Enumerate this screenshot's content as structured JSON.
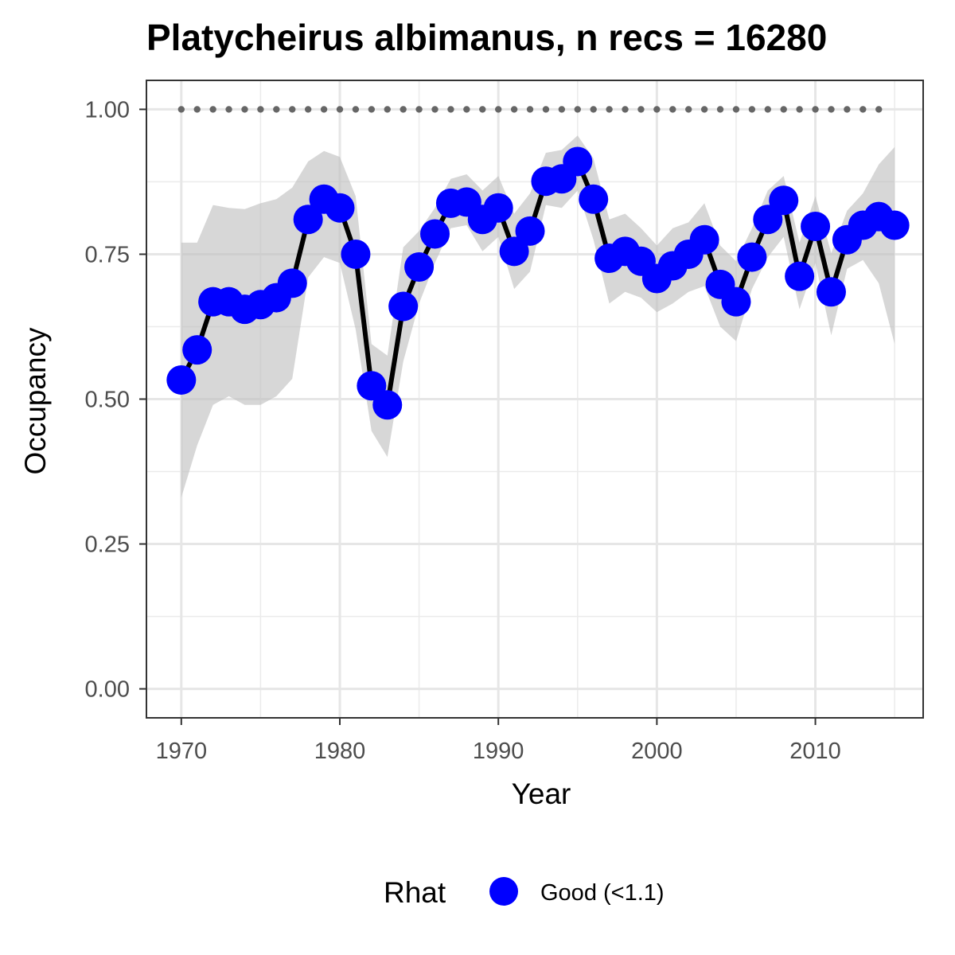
{
  "chart_data": {
    "type": "line",
    "title": "Platycheirus albimanus, n recs = 16280",
    "xlabel": "Year",
    "ylabel": "Occupancy",
    "xlim": [
      1967.8,
      2016.8
    ],
    "ylim": [
      -0.05,
      1.05
    ],
    "x_ticks": [
      1970,
      1980,
      1990,
      2000,
      2010
    ],
    "y_ticks": [
      0.0,
      0.25,
      0.5,
      0.75,
      1.0
    ],
    "x_tick_labels": [
      "1970",
      "1980",
      "1990",
      "2000",
      "2010"
    ],
    "y_tick_labels": [
      "0.00",
      "0.25",
      "0.50",
      "0.75",
      "1.00"
    ],
    "grid": true,
    "legend": {
      "title": "Rhat",
      "position": "bottom",
      "entries": [
        {
          "label": "Good (<1.1)",
          "color": "#0000ff"
        }
      ]
    },
    "series": [
      {
        "name": "Good (<1.1)",
        "color": "#0000ff",
        "line_color": "#000000",
        "x": [
          1970,
          1971,
          1972,
          1973,
          1974,
          1975,
          1976,
          1977,
          1978,
          1979,
          1980,
          1981,
          1982,
          1983,
          1984,
          1985,
          1986,
          1987,
          1988,
          1989,
          1990,
          1991,
          1992,
          1993,
          1994,
          1995,
          1996,
          1997,
          1998,
          1999,
          2000,
          2001,
          2002,
          2003,
          2004,
          2005,
          2006,
          2007,
          2008,
          2009,
          2010,
          2011,
          2012,
          2013,
          2014,
          2015
        ],
        "y": [
          0.533,
          0.585,
          0.668,
          0.668,
          0.655,
          0.663,
          0.675,
          0.7,
          0.81,
          0.845,
          0.83,
          0.75,
          0.523,
          0.49,
          0.66,
          0.728,
          0.785,
          0.838,
          0.84,
          0.81,
          0.83,
          0.755,
          0.79,
          0.876,
          0.88,
          0.91,
          0.845,
          0.743,
          0.755,
          0.738,
          0.708,
          0.73,
          0.75,
          0.775,
          0.698,
          0.668,
          0.745,
          0.81,
          0.843,
          0.712,
          0.798,
          0.685,
          0.775,
          0.8,
          0.815,
          0.8
        ],
        "lower": [
          0.33,
          0.42,
          0.49,
          0.505,
          0.49,
          0.49,
          0.505,
          0.535,
          0.71,
          0.745,
          0.735,
          0.62,
          0.445,
          0.4,
          0.565,
          0.665,
          0.735,
          0.795,
          0.8,
          0.755,
          0.78,
          0.69,
          0.72,
          0.835,
          0.83,
          0.86,
          0.775,
          0.665,
          0.685,
          0.675,
          0.65,
          0.665,
          0.685,
          0.695,
          0.625,
          0.6,
          0.69,
          0.745,
          0.78,
          0.655,
          0.735,
          0.61,
          0.725,
          0.74,
          0.7,
          0.595
        ],
        "upper": [
          0.77,
          0.77,
          0.835,
          0.83,
          0.828,
          0.838,
          0.845,
          0.865,
          0.91,
          0.928,
          0.918,
          0.85,
          0.595,
          0.575,
          0.762,
          0.79,
          0.83,
          0.88,
          0.888,
          0.86,
          0.885,
          0.82,
          0.855,
          0.925,
          0.93,
          0.955,
          0.915,
          0.81,
          0.82,
          0.795,
          0.765,
          0.795,
          0.805,
          0.838,
          0.765,
          0.738,
          0.795,
          0.86,
          0.885,
          0.77,
          0.85,
          0.752,
          0.825,
          0.855,
          0.905,
          0.935
        ]
      }
    ],
    "reference_line": {
      "y": 1.0,
      "x_range": [
        1970,
        2014
      ],
      "color": "#666666",
      "style": "dotted"
    },
    "ribbon_color": "#bfbfbf"
  }
}
